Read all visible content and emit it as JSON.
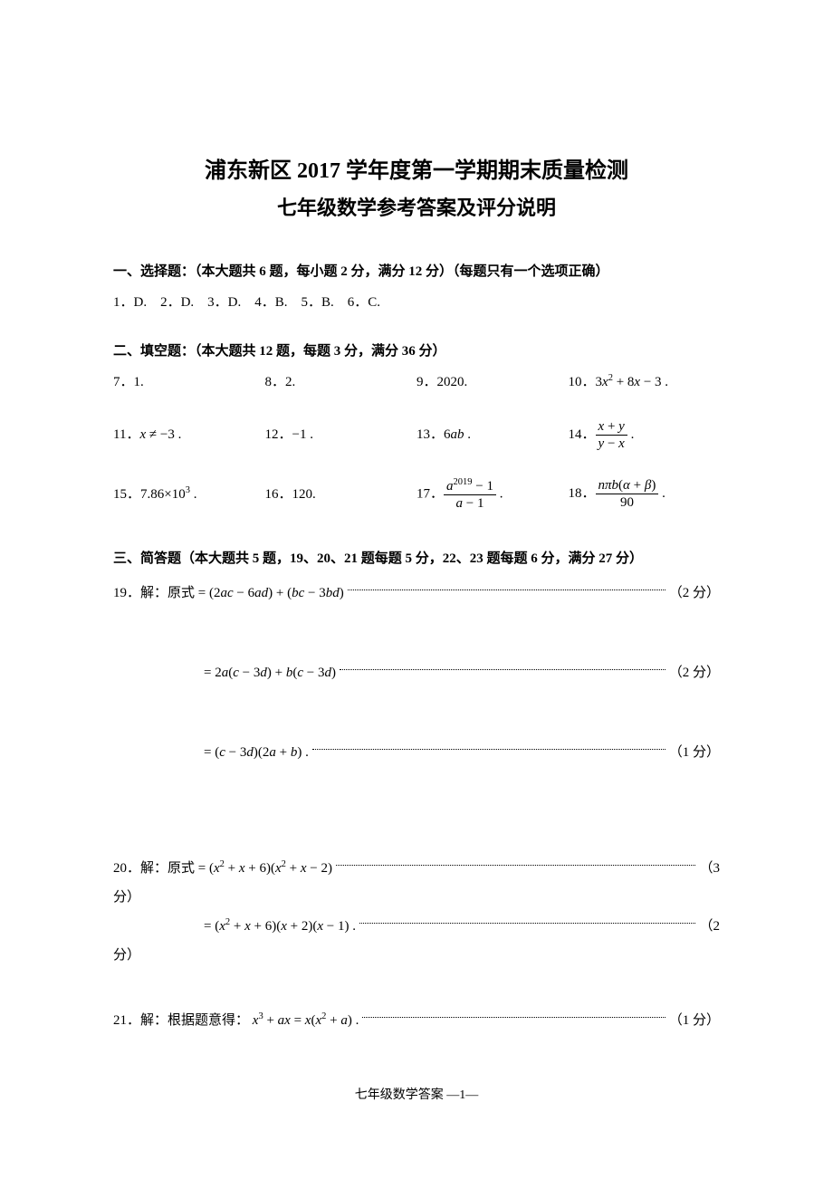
{
  "title": "浦东新区 2017 学年度第一学期期末质量检测",
  "subtitle": "七年级数学参考答案及评分说明",
  "section1": {
    "header": "一、选择题：（本大题共 6 题，每小题 2 分，满分 12 分）（每题只有一个选项正确）",
    "answers_prefix": [
      "1．",
      "2．",
      "3．",
      "4．",
      "5．",
      "6．"
    ],
    "answers": [
      "D.",
      "D.",
      "D.",
      "B.",
      "B.",
      "C."
    ]
  },
  "section2": {
    "header": "二、填空题：（本大题共 12 题，每题 3 分，满分 36 分）",
    "items": [
      {
        "num": "7．",
        "ans_plain": "1."
      },
      {
        "num": "8．",
        "ans_plain": "2."
      },
      {
        "num": "9．",
        "ans_plain": "2020."
      },
      {
        "num": "10．",
        "ans_math": "3<i>x</i><sup>2</sup> + 8<i>x</i> − 3 ."
      },
      {
        "num": "11．",
        "ans_math": "<i>x</i> ≠ −3 ."
      },
      {
        "num": "12．",
        "ans_math": "−1 ."
      },
      {
        "num": "13．",
        "ans_math": "6<i>ab</i> ."
      },
      {
        "num": "14．",
        "frac_num": "<i>x</i> + <i>y</i>",
        "frac_den": "<i>y</i> − <i>x</i>",
        "suffix": "."
      },
      {
        "num": "15．",
        "ans_math": "7.86×10<sup>3</sup> ."
      },
      {
        "num": "16．",
        "ans_plain": "120."
      },
      {
        "num": "17．",
        "frac_num": "<i>a</i><sup>2019</sup> − 1",
        "frac_den": "<i>a</i> − 1",
        "suffix": "."
      },
      {
        "num": "18．",
        "frac_num": "<i>nπb</i>(<i>α</i> + <i>β</i>)",
        "frac_den": "90",
        "suffix": "."
      }
    ]
  },
  "section3": {
    "header": "三、简答题（本大题共 5 题，19、20、21 题每题 5 分，22、23 题每题 6 分，满分 27 分）",
    "p19": {
      "lead": "19．解：原式 = (2<i>ac</i> − 6<i>ad</i>) + (<i>bc</i> − 3<i>bd</i>) ",
      "pts1": "（2 分）",
      "line2": "= 2<i>a</i>(<i>c</i> − 3<i>d</i>) + <i>b</i>(<i>c</i> − 3<i>d</i>) ",
      "pts2": "（2 分）",
      "line3": "= (<i>c</i> − 3<i>d</i>)(2<i>a</i> + <i>b</i>) .  ",
      "pts3": "（1 分）"
    },
    "p20": {
      "lead": "20．解：原式 = (<i>x</i><sup>2</sup> + <i>x</i> + 6)(<i>x</i><sup>2</sup> + <i>x</i> − 2) ",
      "pts1a": "（3",
      "pts1b": "分）",
      "line2": "= (<i>x</i><sup>2</sup> + <i>x</i> + 6)(<i>x</i> + 2)(<i>x</i> − 1) .  ",
      "pts2a": "（2",
      "pts2b": "分）"
    },
    "p21": {
      "lead": "21．解：根据题意得： <i>x</i><sup>3</sup> + <i>ax</i> = <i>x</i>(<i>x</i><sup>2</sup> + <i>a</i>) .  ",
      "pts": "（1 分）"
    }
  },
  "footer": "七年级数学答案  ―1―"
}
